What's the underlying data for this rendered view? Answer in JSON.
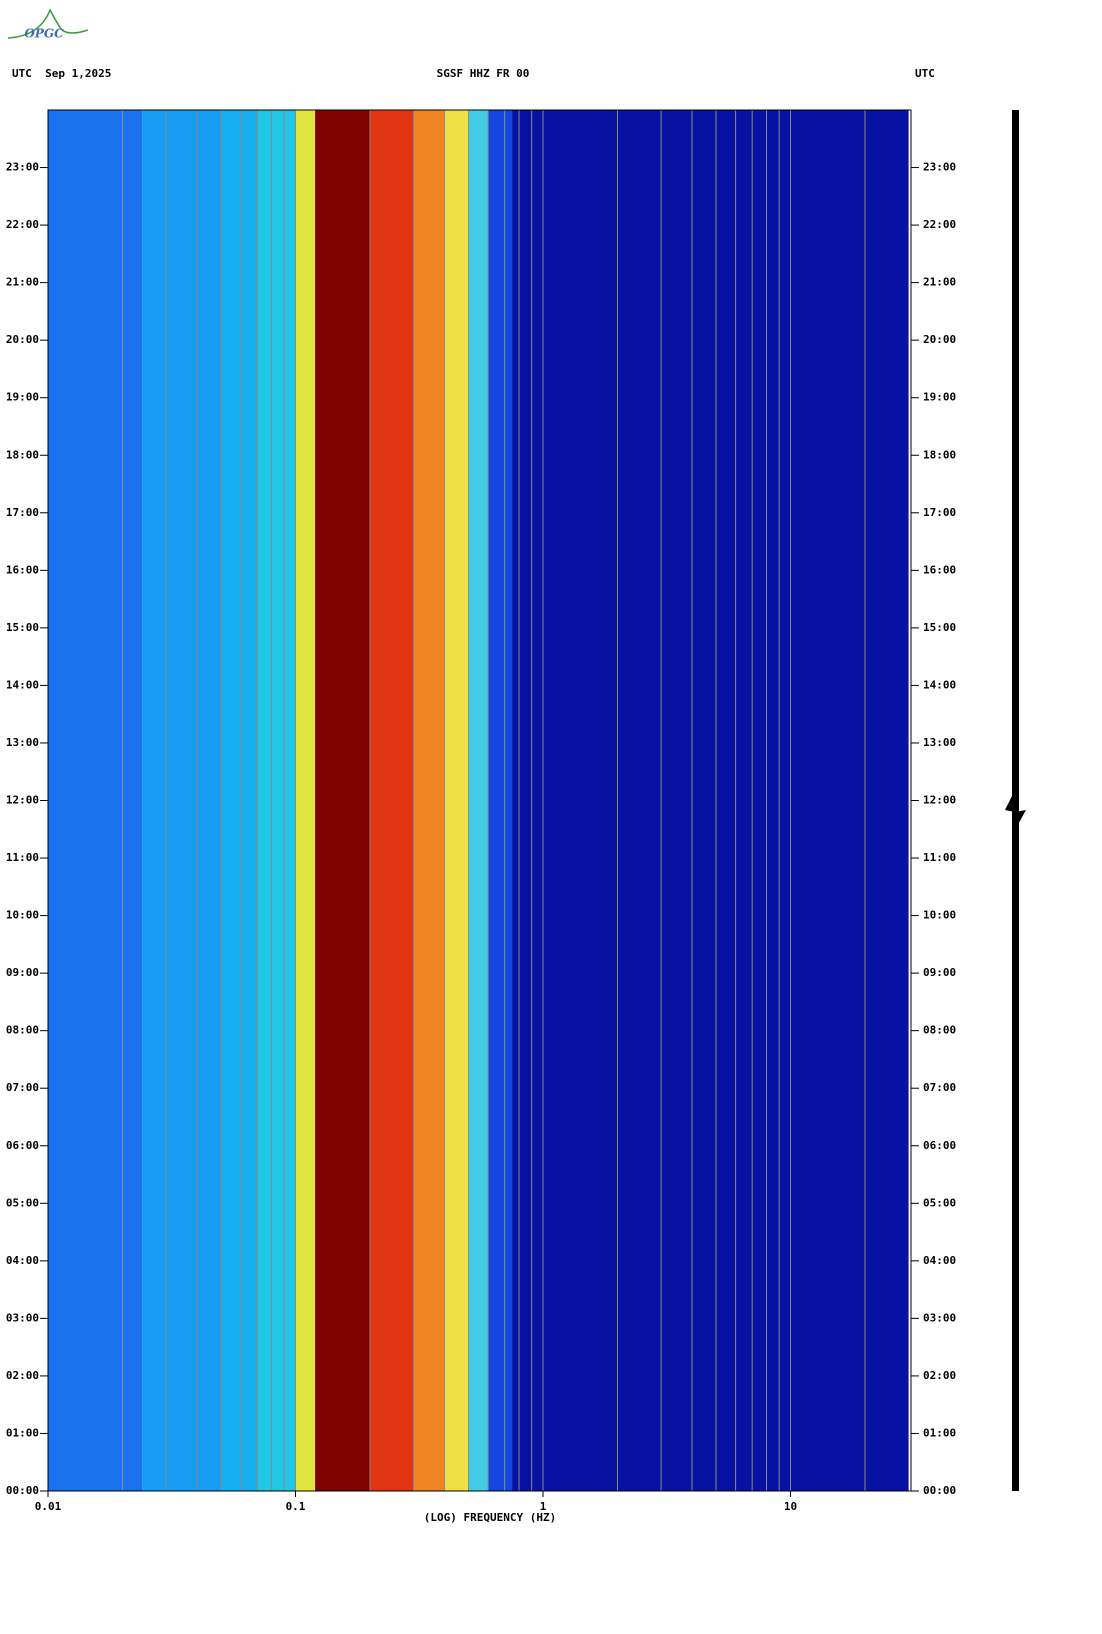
{
  "chart_data": {
    "type": "spectrogram",
    "logo": "OPGC",
    "title_left": "UTC  Sep 1,2025",
    "title": "SGSF HHZ FR 00",
    "title_right": "UTC",
    "xlabel": "(LOG) FREQUENCY (HZ)",
    "xscale": "log",
    "xlim": [
      0.01,
      30
    ],
    "xticks": [
      0.01,
      0.1,
      1,
      10
    ],
    "xgrid": [
      0.02,
      0.03,
      0.04,
      0.05,
      0.06,
      0.07,
      0.08,
      0.09,
      0.2,
      0.3,
      0.4,
      0.5,
      0.6,
      0.7,
      0.8,
      0.9,
      2,
      3,
      4,
      5,
      6,
      7,
      8,
      9,
      20
    ],
    "ylim": [
      0,
      24
    ],
    "yticks": [
      {
        "value": 0,
        "label": "00:00"
      },
      {
        "value": 1,
        "label": "01:00"
      },
      {
        "value": 2,
        "label": "02:00"
      },
      {
        "value": 3,
        "label": "03:00"
      },
      {
        "value": 4,
        "label": "04:00"
      },
      {
        "value": 5,
        "label": "05:00"
      },
      {
        "value": 6,
        "label": "06:00"
      },
      {
        "value": 7,
        "label": "07:00"
      },
      {
        "value": 8,
        "label": "08:00"
      },
      {
        "value": 9,
        "label": "09:00"
      },
      {
        "value": 10,
        "label": "10:00"
      },
      {
        "value": 11,
        "label": "11:00"
      },
      {
        "value": 12,
        "label": "12:00"
      },
      {
        "value": 13,
        "label": "13:00"
      },
      {
        "value": 14,
        "label": "14:00"
      },
      {
        "value": 15,
        "label": "15:00"
      },
      {
        "value": 16,
        "label": "16:00"
      },
      {
        "value": 17,
        "label": "17:00"
      },
      {
        "value": 18,
        "label": "18:00"
      },
      {
        "value": 19,
        "label": "19:00"
      },
      {
        "value": 20,
        "label": "20:00"
      },
      {
        "value": 21,
        "label": "21:00"
      },
      {
        "value": 22,
        "label": "22:00"
      },
      {
        "value": 23,
        "label": "23:00"
      }
    ],
    "bands": [
      {
        "from": 0.01,
        "to": 0.024,
        "color": "#1a72ee"
      },
      {
        "from": 0.024,
        "to": 0.05,
        "color": "#169cf2"
      },
      {
        "from": 0.05,
        "to": 0.07,
        "color": "#16b0f0"
      },
      {
        "from": 0.07,
        "to": 0.1,
        "color": "#22c6e6"
      },
      {
        "from": 0.1,
        "to": 0.12,
        "color": "#e0e640"
      },
      {
        "from": 0.12,
        "to": 0.2,
        "color": "#800000"
      },
      {
        "from": 0.2,
        "to": 0.3,
        "color": "#e23612"
      },
      {
        "from": 0.3,
        "to": 0.4,
        "color": "#f08424"
      },
      {
        "from": 0.4,
        "to": 0.5,
        "color": "#eee044"
      },
      {
        "from": 0.5,
        "to": 0.6,
        "color": "#44cce4"
      },
      {
        "from": 0.6,
        "to": 0.75,
        "color": "#1446e0"
      },
      {
        "from": 0.75,
        "to": 30,
        "color": "#0812a2"
      }
    ]
  }
}
